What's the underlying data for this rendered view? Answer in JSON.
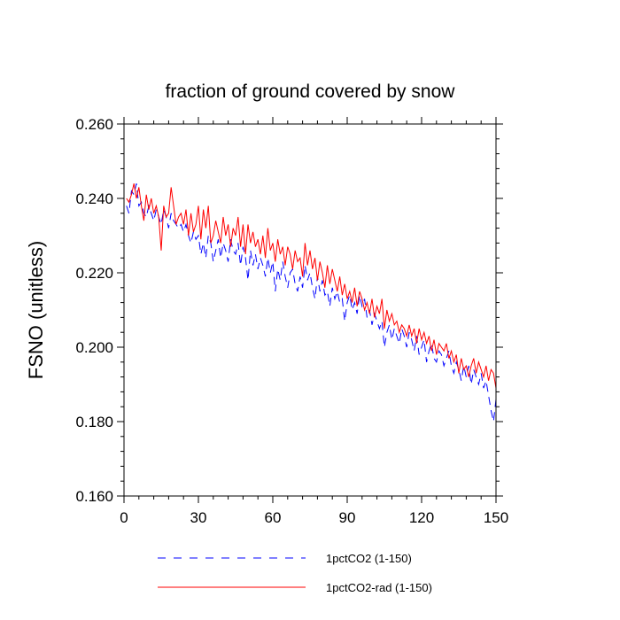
{
  "chart_data": {
    "type": "line",
    "title": "fraction of ground covered by snow",
    "xlabel": "",
    "ylabel": "FSNO  (unitless)",
    "xlim": [
      0,
      150
    ],
    "ylim": [
      0.16,
      0.26
    ],
    "x_ticks": [
      0,
      30,
      60,
      90,
      120,
      150
    ],
    "x_tick_labels": [
      "0",
      "30",
      "60",
      "90",
      "120",
      "150"
    ],
    "y_ticks": [
      0.16,
      0.18,
      0.2,
      0.22,
      0.24,
      0.26
    ],
    "y_tick_labels": [
      "0.160",
      "0.180",
      "0.200",
      "0.220",
      "0.240",
      "0.260"
    ],
    "grid": false,
    "legend_position": "bottom",
    "series": [
      {
        "name": "1pctCO2 (1-150)",
        "color": "#0000ff",
        "style": "dashed",
        "x": [
          1,
          2,
          3,
          4,
          5,
          6,
          7,
          8,
          9,
          10,
          11,
          12,
          13,
          14,
          15,
          16,
          17,
          18,
          19,
          20,
          21,
          22,
          23,
          24,
          25,
          26,
          27,
          28,
          29,
          30,
          31,
          32,
          33,
          34,
          35,
          36,
          37,
          38,
          39,
          40,
          41,
          42,
          43,
          44,
          45,
          46,
          47,
          48,
          49,
          50,
          51,
          52,
          53,
          54,
          55,
          56,
          57,
          58,
          59,
          60,
          61,
          62,
          63,
          64,
          65,
          66,
          67,
          68,
          69,
          70,
          71,
          72,
          73,
          74,
          75,
          76,
          77,
          78,
          79,
          80,
          81,
          82,
          83,
          84,
          85,
          86,
          87,
          88,
          89,
          90,
          91,
          92,
          93,
          94,
          95,
          96,
          97,
          98,
          99,
          100,
          101,
          102,
          103,
          104,
          105,
          106,
          107,
          108,
          109,
          110,
          111,
          112,
          113,
          114,
          115,
          116,
          117,
          118,
          119,
          120,
          121,
          122,
          123,
          124,
          125,
          126,
          127,
          128,
          129,
          130,
          131,
          132,
          133,
          134,
          135,
          136,
          137,
          138,
          139,
          140,
          141,
          142,
          143,
          144,
          145,
          146,
          147,
          148,
          149,
          150
        ],
        "values": [
          0.238,
          0.236,
          0.242,
          0.241,
          0.244,
          0.238,
          0.239,
          0.236,
          0.235,
          0.238,
          0.236,
          0.234,
          0.237,
          0.235,
          0.233,
          0.237,
          0.235,
          0.232,
          0.236,
          0.234,
          0.233,
          0.232,
          0.233,
          0.231,
          0.233,
          0.23,
          0.228,
          0.231,
          0.229,
          0.23,
          0.225,
          0.228,
          0.224,
          0.23,
          0.228,
          0.223,
          0.226,
          0.229,
          0.224,
          0.228,
          0.226,
          0.223,
          0.229,
          0.226,
          0.225,
          0.228,
          0.222,
          0.227,
          0.224,
          0.218,
          0.226,
          0.222,
          0.225,
          0.221,
          0.224,
          0.222,
          0.219,
          0.224,
          0.22,
          0.223,
          0.215,
          0.221,
          0.218,
          0.223,
          0.219,
          0.216,
          0.22,
          0.221,
          0.217,
          0.215,
          0.219,
          0.216,
          0.222,
          0.218,
          0.22,
          0.216,
          0.213,
          0.219,
          0.215,
          0.218,
          0.214,
          0.215,
          0.211,
          0.216,
          0.213,
          0.215,
          0.212,
          0.213,
          0.207,
          0.212,
          0.214,
          0.21,
          0.212,
          0.209,
          0.214,
          0.211,
          0.213,
          0.208,
          0.21,
          0.206,
          0.209,
          0.207,
          0.205,
          0.207,
          0.2,
          0.204,
          0.206,
          0.202,
          0.205,
          0.203,
          0.201,
          0.205,
          0.203,
          0.2,
          0.204,
          0.202,
          0.199,
          0.203,
          0.198,
          0.2,
          0.202,
          0.196,
          0.199,
          0.201,
          0.197,
          0.196,
          0.199,
          0.198,
          0.195,
          0.197,
          0.199,
          0.195,
          0.193,
          0.196,
          0.194,
          0.191,
          0.195,
          0.192,
          0.195,
          0.19,
          0.194,
          0.192,
          0.19,
          0.193,
          0.189,
          0.191,
          0.187,
          0.183,
          0.18,
          0.186
        ]
      },
      {
        "name": "1pctCO2-rad (1-150)",
        "color": "#ff0000",
        "style": "solid",
        "x": [
          1,
          2,
          3,
          4,
          5,
          6,
          7,
          8,
          9,
          10,
          11,
          12,
          13,
          14,
          15,
          16,
          17,
          18,
          19,
          20,
          21,
          22,
          23,
          24,
          25,
          26,
          27,
          28,
          29,
          30,
          31,
          32,
          33,
          34,
          35,
          36,
          37,
          38,
          39,
          40,
          41,
          42,
          43,
          44,
          45,
          46,
          47,
          48,
          49,
          50,
          51,
          52,
          53,
          54,
          55,
          56,
          57,
          58,
          59,
          60,
          61,
          62,
          63,
          64,
          65,
          66,
          67,
          68,
          69,
          70,
          71,
          72,
          73,
          74,
          75,
          76,
          77,
          78,
          79,
          80,
          81,
          82,
          83,
          84,
          85,
          86,
          87,
          88,
          89,
          90,
          91,
          92,
          93,
          94,
          95,
          96,
          97,
          98,
          99,
          100,
          101,
          102,
          103,
          104,
          105,
          106,
          107,
          108,
          109,
          110,
          111,
          112,
          113,
          114,
          115,
          116,
          117,
          118,
          119,
          120,
          121,
          122,
          123,
          124,
          125,
          126,
          127,
          128,
          129,
          130,
          131,
          132,
          133,
          134,
          135,
          136,
          137,
          138,
          139,
          140,
          141,
          142,
          143,
          144,
          145,
          146,
          147,
          148,
          149,
          150
        ],
        "values": [
          0.24,
          0.239,
          0.241,
          0.244,
          0.24,
          0.243,
          0.238,
          0.234,
          0.241,
          0.237,
          0.24,
          0.236,
          0.238,
          0.235,
          0.226,
          0.238,
          0.235,
          0.236,
          0.243,
          0.238,
          0.233,
          0.235,
          0.236,
          0.233,
          0.237,
          0.23,
          0.236,
          0.231,
          0.233,
          0.238,
          0.229,
          0.237,
          0.232,
          0.238,
          0.228,
          0.23,
          0.234,
          0.231,
          0.228,
          0.235,
          0.23,
          0.233,
          0.227,
          0.232,
          0.23,
          0.235,
          0.227,
          0.233,
          0.225,
          0.233,
          0.228,
          0.231,
          0.227,
          0.229,
          0.225,
          0.23,
          0.224,
          0.232,
          0.226,
          0.228,
          0.223,
          0.229,
          0.225,
          0.227,
          0.222,
          0.227,
          0.225,
          0.221,
          0.226,
          0.223,
          0.224,
          0.219,
          0.228,
          0.222,
          0.226,
          0.221,
          0.224,
          0.218,
          0.223,
          0.22,
          0.216,
          0.222,
          0.217,
          0.221,
          0.218,
          0.215,
          0.219,
          0.214,
          0.217,
          0.213,
          0.215,
          0.212,
          0.216,
          0.211,
          0.215,
          0.213,
          0.21,
          0.212,
          0.209,
          0.213,
          0.208,
          0.211,
          0.209,
          0.213,
          0.205,
          0.21,
          0.207,
          0.209,
          0.206,
          0.207,
          0.204,
          0.206,
          0.205,
          0.203,
          0.206,
          0.203,
          0.205,
          0.201,
          0.205,
          0.202,
          0.204,
          0.201,
          0.203,
          0.199,
          0.202,
          0.198,
          0.201,
          0.2,
          0.199,
          0.201,
          0.197,
          0.199,
          0.196,
          0.198,
          0.193,
          0.197,
          0.194,
          0.195,
          0.192,
          0.195,
          0.197,
          0.193,
          0.196,
          0.194,
          0.192,
          0.195,
          0.191,
          0.194,
          0.193,
          0.189
        ]
      }
    ]
  }
}
